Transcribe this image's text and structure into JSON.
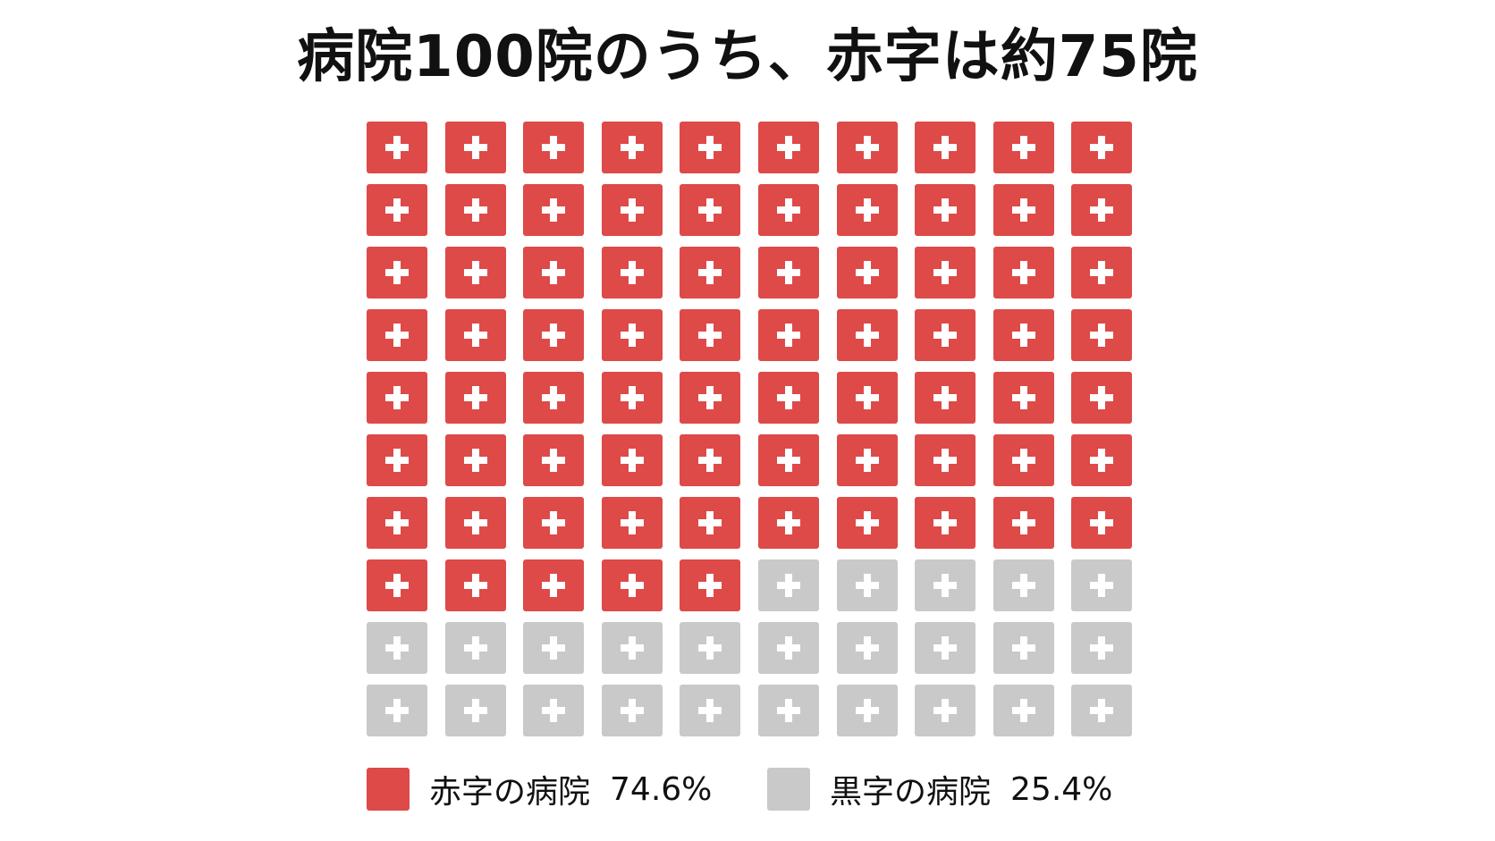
{
  "chart_data": {
    "type": "waffle",
    "title": "病院100院のうち、赤字は約75院",
    "rows": 10,
    "columns": 10,
    "total": 100,
    "series": [
      {
        "name": "赤字の病院",
        "value_label": "74.6%",
        "percent": 74.6,
        "count": 75,
        "color": "#dd4a48"
      },
      {
        "name": "黒字の病院",
        "value_label": "25.4%",
        "percent": 25.4,
        "count": 25,
        "color": "#c9c9c9"
      }
    ],
    "icon": "medical-cross-icon",
    "legend_position": "bottom"
  }
}
